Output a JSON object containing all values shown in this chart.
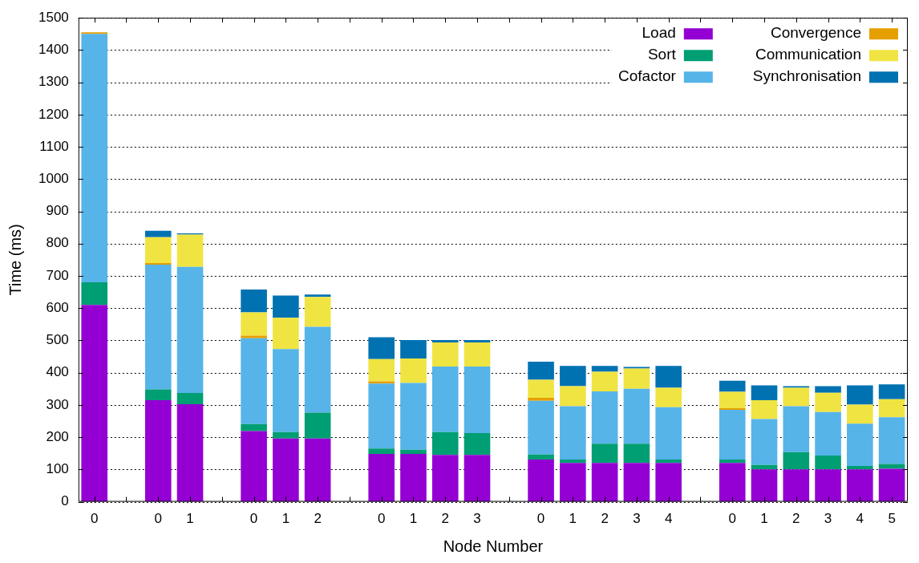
{
  "chart_data": {
    "type": "bar",
    "stacked": true,
    "xlabel": "Node Number",
    "ylabel": "Time (ms)",
    "categories": [
      "0",
      null,
      "0",
      "1",
      null,
      "0",
      "1",
      "2",
      null,
      "0",
      "1",
      "2",
      "3",
      null,
      "0",
      "1",
      "2",
      "3",
      "4",
      null,
      "0",
      "1",
      "2",
      "3",
      "4",
      "5"
    ],
    "series": [
      {
        "name": "Load",
        "color": "#9400d3",
        "values": [
          610,
          null,
          315,
          302,
          null,
          219,
          196,
          196,
          null,
          148,
          148,
          145,
          145,
          null,
          131,
          120,
          120,
          120,
          120,
          null,
          120,
          100,
          100,
          100,
          100,
          102
        ]
      },
      {
        "name": "Sort",
        "color": "#009e73",
        "values": [
          70,
          null,
          33,
          35,
          null,
          22,
          20,
          80,
          null,
          17,
          13,
          71,
          68,
          null,
          15,
          11,
          60,
          60,
          11,
          null,
          11,
          14,
          54,
          43,
          11,
          15
        ]
      },
      {
        "name": "Cofactor",
        "color": "#56b4e9",
        "values": [
          770,
          null,
          387,
          391,
          null,
          266,
          257,
          266,
          null,
          201,
          207,
          203,
          206,
          null,
          167,
          165,
          162,
          170,
          162,
          null,
          154,
          142,
          142,
          135,
          131,
          145
        ]
      },
      {
        "name": "Convergence",
        "color": "#e69f00",
        "values": [
          5,
          null,
          5,
          0,
          null,
          8,
          0,
          0,
          null,
          7,
          0,
          0,
          0,
          null,
          9,
          0,
          0,
          0,
          0,
          null,
          5,
          0,
          0,
          0,
          0,
          0
        ]
      },
      {
        "name": "Communication",
        "color": "#f0e442",
        "values": [
          0,
          null,
          80,
          100,
          null,
          72,
          97,
          93,
          null,
          69,
          76,
          75,
          75,
          null,
          56,
          62,
          61,
          63,
          60,
          null,
          51,
          59,
          57,
          60,
          59,
          56
        ]
      },
      {
        "name": "Synchronisation",
        "color": "#0072b2",
        "values": [
          0,
          null,
          20,
          4,
          null,
          71,
          69,
          7,
          null,
          68,
          57,
          7,
          7,
          null,
          56,
          63,
          18,
          5,
          68,
          null,
          34,
          46,
          5,
          20,
          60,
          46
        ]
      }
    ],
    "ylim": [
      0,
      1500
    ],
    "yticks": [
      0,
      100,
      200,
      300,
      400,
      500,
      600,
      700,
      800,
      900,
      1000,
      1100,
      1200,
      1300,
      1400,
      1500
    ],
    "grid": "y",
    "legend": "top right"
  }
}
